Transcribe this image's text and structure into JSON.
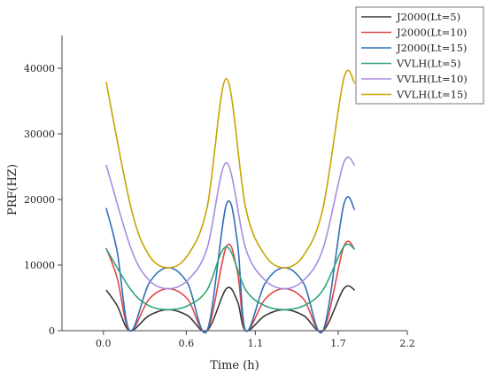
{
  "chart_data": {
    "type": "line",
    "xlabel": "Time (h)",
    "ylabel": "PRF(HZ)",
    "xlim": [
      -0.3,
      2.2
    ],
    "ylim": [
      0,
      45000
    ],
    "xticks": [
      0.0,
      0.6,
      1.1,
      1.7,
      2.2
    ],
    "xtick_labels": [
      "0.0",
      "0.6",
      "1.1",
      "1.7",
      "2.2"
    ],
    "yticks": [
      0,
      10000,
      20000,
      30000,
      40000
    ],
    "ytick_labels": [
      "0",
      "10000",
      "20000",
      "30000",
      "40000"
    ],
    "legend_position": "top-right",
    "grid": false,
    "series": [
      {
        "name": "J2000(Lt=5)",
        "color": "#3a3a3a",
        "x": [
          0.02,
          0.1,
          0.19,
          0.33,
          0.47,
          0.61,
          0.75,
          0.89,
          0.97,
          1.03,
          1.17,
          1.31,
          1.45,
          1.59,
          1.74,
          1.82
        ],
        "y": [
          6200,
          3800,
          0,
          2300,
          3200,
          2300,
          0,
          6400,
          4500,
          0,
          2300,
          3200,
          2300,
          0,
          6400,
          6200
        ]
      },
      {
        "name": "J2000(Lt=10)",
        "color": "#e0474c",
        "x": [
          0.02,
          0.1,
          0.19,
          0.33,
          0.47,
          0.61,
          0.75,
          0.89,
          0.97,
          1.03,
          1.17,
          1.31,
          1.45,
          1.59,
          1.74,
          1.82
        ],
        "y": [
          12600,
          8000,
          0,
          4800,
          6400,
          4800,
          0,
          12800,
          9000,
          0,
          4800,
          6400,
          4800,
          0,
          12800,
          12400
        ]
      },
      {
        "name": "J2000(Lt=15)",
        "color": "#2f6fb5",
        "x": [
          0.02,
          0.1,
          0.19,
          0.33,
          0.47,
          0.61,
          0.75,
          0.89,
          0.97,
          1.03,
          1.17,
          1.31,
          1.45,
          1.59,
          1.74,
          1.82
        ],
        "y": [
          18700,
          12000,
          0,
          7200,
          9600,
          7200,
          0,
          19200,
          13500,
          0,
          7200,
          9600,
          7200,
          0,
          19200,
          18400
        ]
      },
      {
        "name": "VVLH(Lt=5)",
        "color": "#2ea57a",
        "x": [
          0.02,
          0.2,
          0.33,
          0.47,
          0.61,
          0.75,
          0.89,
          1.03,
          1.17,
          1.31,
          1.45,
          1.59,
          1.74,
          1.82
        ],
        "y": [
          12500,
          6200,
          3800,
          3200,
          3800,
          6200,
          12800,
          6200,
          3800,
          3200,
          3800,
          6200,
          12800,
          12400
        ]
      },
      {
        "name": "VVLH(Lt=10)",
        "color": "#a78be0",
        "x": [
          0.02,
          0.2,
          0.33,
          0.47,
          0.61,
          0.75,
          0.89,
          1.03,
          1.17,
          1.31,
          1.45,
          1.59,
          1.74,
          1.82
        ],
        "y": [
          25300,
          12500,
          7700,
          6400,
          7700,
          12500,
          25600,
          12500,
          7700,
          6400,
          7700,
          12500,
          25600,
          25200
        ]
      },
      {
        "name": "VVLH(Lt=15)",
        "color": "#c9a300",
        "x": [
          0.02,
          0.2,
          0.33,
          0.47,
          0.61,
          0.75,
          0.89,
          1.03,
          1.17,
          1.31,
          1.45,
          1.59,
          1.74,
          1.82
        ],
        "y": [
          37900,
          18700,
          11500,
          9600,
          11500,
          18700,
          38400,
          18700,
          11500,
          9600,
          11500,
          18700,
          38400,
          37700
        ]
      }
    ]
  }
}
